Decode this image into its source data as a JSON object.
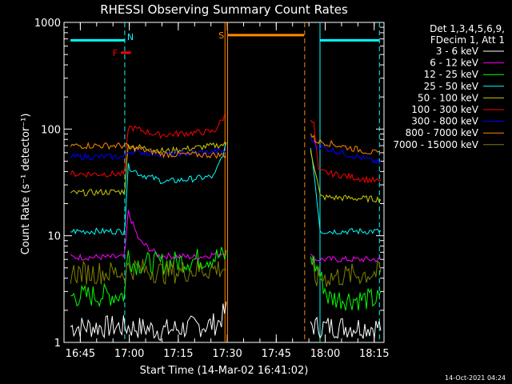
{
  "chart_data": {
    "type": "line",
    "title": "RHESSI Observing Summary Count Rates",
    "xlabel": "Start Time (14-Mar-02 16:41:02)",
    "ylabel": "Count Rate (s⁻¹ detector⁻¹)",
    "yscale": "log",
    "ylim": [
      1,
      1000
    ],
    "xlim_minutes": [
      -1,
      97
    ],
    "x_ticks": [
      {
        "label": "16:45",
        "minute": 4
      },
      {
        "label": "17:00",
        "minute": 19
      },
      {
        "label": "17:15",
        "minute": 34
      },
      {
        "label": "17:30",
        "minute": 49
      },
      {
        "label": "17:45",
        "minute": 64
      },
      {
        "label": "18:00",
        "minute": 79
      },
      {
        "label": "18:15",
        "minute": 94
      }
    ],
    "y_ticks": [
      {
        "label": "1",
        "value": 1
      },
      {
        "label": "10",
        "value": 10
      },
      {
        "label": "100",
        "value": 100
      },
      {
        "label": "1000",
        "value": 1000
      }
    ],
    "legend_header": [
      "Det 1,3,4,5,6,9,",
      "FDecim 1, Att 1"
    ],
    "legend_position": "right",
    "series": [
      {
        "name": "3 - 6 keV",
        "color": "#ffffff",
        "segments": [
          {
            "x": [
              1,
              10,
              18,
              30,
              46,
              48.7
            ],
            "y": [
              1.4,
              1.4,
              1.4,
              1.3,
              1.5,
              2.0
            ]
          },
          {
            "x": [
              74.5,
              76,
              85,
              96
            ],
            "y": [
              1.5,
              1.4,
              1.4,
              1.4
            ]
          }
        ]
      },
      {
        "name": "6 - 12 keV",
        "color": "#ff00ff",
        "segments": [
          {
            "x": [
              1,
              17.6,
              18.6,
              22,
              28,
              40,
              48.7
            ],
            "y": [
              6.3,
              6.3,
              17,
              9,
              6.5,
              6.3,
              7.0
            ]
          },
          {
            "x": [
              74.5,
              75.5,
              96
            ],
            "y": [
              6.5,
              6.0,
              6.0
            ]
          }
        ]
      },
      {
        "name": "12 - 25 keV",
        "color": "#00ff00",
        "segments": [
          {
            "x": [
              1,
              17.6,
              18.6,
              20,
              30,
              48.7
            ],
            "y": [
              2.7,
              2.8,
              7.5,
              5.5,
              5.5,
              6.5
            ]
          },
          {
            "x": [
              74.5,
              77,
              80,
              96
            ],
            "y": [
              6.5,
              4.5,
              2.6,
              2.5
            ]
          }
        ]
      },
      {
        "name": "25 - 50 keV",
        "color": "#00ffff",
        "segments": [
          {
            "x": [
              1,
              17.6,
              18.6,
              22,
              30,
              45,
              48.7
            ],
            "y": [
              11,
              11,
              45,
              38,
              32,
              36,
              70
            ]
          },
          {
            "x": [
              74.5,
              76,
              77.5,
              96
            ],
            "y": [
              70,
              30,
              11,
              11
            ]
          }
        ]
      },
      {
        "name": "50 - 100 keV",
        "color": "#cccc00",
        "segments": [
          {
            "x": [
              1,
              17.6,
              18.6,
              30,
              48.7
            ],
            "y": [
              25,
              26,
              70,
              62,
              72
            ]
          },
          {
            "x": [
              74.5,
              76,
              77.5,
              96
            ],
            "y": [
              65,
              40,
              23,
              22
            ]
          }
        ]
      },
      {
        "name": "100 - 300 keV",
        "color": "#ff0000",
        "segments": [
          {
            "x": [
              1,
              17.6,
              18.6,
              28,
              45,
              48.7
            ],
            "y": [
              38,
              38,
              105,
              88,
              95,
              140
            ]
          },
          {
            "x": [
              74.5,
              75.5,
              77,
              96
            ],
            "y": [
              130,
              110,
              40,
              32
            ]
          }
        ]
      },
      {
        "name": "300 - 800 keV",
        "color": "#0000ff",
        "segments": [
          {
            "x": [
              1,
              17.6,
              18.6,
              30,
              48.7
            ],
            "y": [
              55,
              55,
              62,
              58,
              62
            ]
          },
          {
            "x": [
              74.5,
              76,
              96
            ],
            "y": [
              85,
              70,
              48
            ]
          }
        ]
      },
      {
        "name": "800 - 7000 keV",
        "color": "#ff8800",
        "segments": [
          {
            "x": [
              1,
              17.6,
              18.6,
              30,
              48.7
            ],
            "y": [
              70,
              70,
              68,
              58,
              57
            ]
          },
          {
            "x": [
              74.5,
              76,
              96
            ],
            "y": [
              90,
              78,
              58
            ]
          }
        ]
      },
      {
        "name": "7000 - 15000 keV",
        "color": "#808000",
        "segments": [
          {
            "x": [
              1,
              17.6,
              18.6,
              30,
              48.7
            ],
            "y": [
              4.5,
              4.5,
              5.0,
              4.5,
              5.0
            ]
          },
          {
            "x": [
              74.5,
              76,
              96
            ],
            "y": [
              5.2,
              4.0,
              4.5
            ]
          }
        ]
      }
    ],
    "annotations": [
      {
        "label": "F",
        "color": "#ff0000",
        "type": "bar",
        "x_start": 16.4,
        "x_end": 19.5,
        "y": 520
      },
      {
        "label": "N",
        "color": "#00ffff",
        "type": "vline",
        "x": 17.6
      },
      {
        "label": "S",
        "color": "#ff8800",
        "type": "bar",
        "x_start": 49,
        "x_end": 72.5,
        "y": 760
      },
      {
        "label": "",
        "color": "#00ffff",
        "type": "bar",
        "x_start": 1,
        "x_end": 17.6,
        "y": 680
      },
      {
        "label": "",
        "color": "#00ffff",
        "type": "bar",
        "x_start": 77.5,
        "x_end": 95.5,
        "y": 680
      }
    ],
    "vlines": [
      {
        "x": 17.6,
        "color": "#00ffff",
        "style": "dashed"
      },
      {
        "x": 48.3,
        "color": "#ff8800",
        "style": "solid"
      },
      {
        "x": 49.1,
        "color": "#ff8800",
        "style": "solid"
      },
      {
        "x": 72.7,
        "color": "#ff8800",
        "style": "dashed"
      },
      {
        "x": 77.4,
        "color": "#00ffff",
        "style": "solid"
      },
      {
        "x": 95.6,
        "color": "#00ffff",
        "style": "dashed"
      }
    ]
  },
  "footer": {
    "timestamp": "14-Oct-2021 04:24"
  }
}
